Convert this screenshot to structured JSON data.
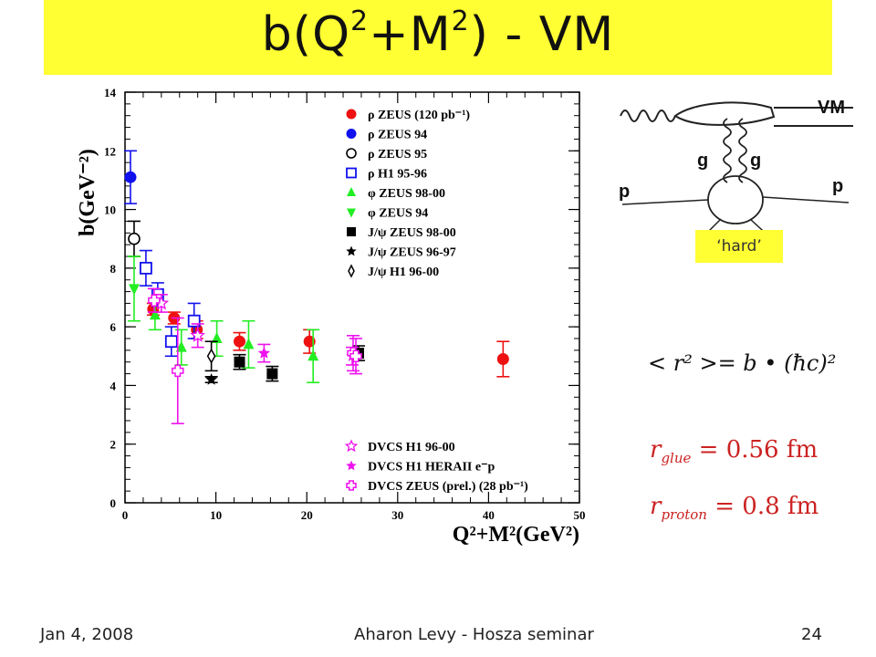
{
  "slide": {
    "title_main": "b(Q",
    "title_sup1": "2",
    "title_mid": "+M",
    "title_sup2": "2",
    "title_end": ") - VM",
    "footer_date": "Jan 4, 2008",
    "footer_center": "Aharon Levy - Hosza seminar",
    "footer_page": "24"
  },
  "diagram": {
    "label_vm": "VM",
    "label_g_left": "g",
    "label_g_right": "g",
    "label_p_left": "p",
    "label_p_right": "p",
    "hard_label": "‘hard’"
  },
  "formulas": {
    "radius_relation": "< r² >= b • (ħc)²",
    "r_glue": "r",
    "r_glue_sub": "glue",
    "r_glue_value": " = 0.56 fm",
    "r_proton": "r",
    "r_proton_sub": "proton",
    "r_proton_value": " = 0.8 fm",
    "color_red": "#cc2222"
  },
  "chart_data": {
    "type": "scatter",
    "xlabel": "Q²+M²(GeV²)",
    "ylabel": "b(GeV⁻²)",
    "xlim": [
      0,
      50
    ],
    "ylim": [
      0,
      14
    ],
    "xticks": [
      0,
      10,
      20,
      30,
      40,
      50
    ],
    "yticks": [
      0,
      2,
      4,
      6,
      8,
      10,
      12,
      14
    ],
    "legend_top": [
      {
        "label": "ρ ZEUS (120 pb⁻¹)",
        "marker": "filled-circle",
        "color": "#ee1111"
      },
      {
        "label": "ρ ZEUS 94",
        "marker": "filled-circle",
        "color": "#1111ee"
      },
      {
        "label": "ρ ZEUS 95",
        "marker": "open-circle",
        "color": "#000000"
      },
      {
        "label": "ρ H1 95-96",
        "marker": "open-square",
        "color": "#1111ee"
      },
      {
        "label": "φ ZEUS 98-00",
        "marker": "triangle-up",
        "color": "#22ee22"
      },
      {
        "label": "φ ZEUS 94",
        "marker": "triangle-down",
        "color": "#22ee22"
      },
      {
        "label": "J/ψ ZEUS 98-00",
        "marker": "filled-square",
        "color": "#000000"
      },
      {
        "label": "J/ψ ZEUS 96-97",
        "marker": "star",
        "color": "#000000"
      },
      {
        "label": "J/ψ H1 96-00",
        "marker": "open-diamond",
        "color": "#000000"
      }
    ],
    "legend_bottom": [
      {
        "label": "DVCS H1 96-00",
        "marker": "open-star",
        "color": "#ee11ee"
      },
      {
        "label": "DVCS H1 HERAII e⁻p",
        "marker": "star",
        "color": "#ee11ee"
      },
      {
        "label": "DVCS ZEUS (prel.) (28 pb⁻¹)",
        "marker": "open-cross",
        "color": "#ee11ee"
      }
    ],
    "series": [
      {
        "name": "ρ ZEUS (120 pb⁻¹)",
        "marker": "filled-circle",
        "color": "#ee1111",
        "points": [
          [
            3.1,
            6.6,
            0.2
          ],
          [
            5.4,
            6.3,
            0.2
          ],
          [
            7.9,
            5.9,
            0.3
          ],
          [
            12.6,
            5.5,
            0.3
          ],
          [
            20.3,
            5.5,
            0.4
          ],
          [
            41.6,
            4.9,
            0.6
          ]
        ]
      },
      {
        "name": "ρ ZEUS 94",
        "marker": "filled-circle",
        "color": "#1111ee",
        "points": [
          [
            0.6,
            11.1,
            0.9
          ]
        ]
      },
      {
        "name": "ρ ZEUS 95",
        "marker": "open-circle",
        "color": "#000000",
        "points": [
          [
            1.0,
            9.0,
            0.6
          ]
        ]
      },
      {
        "name": "ρ H1 95-96",
        "marker": "open-square",
        "color": "#1111ee",
        "points": [
          [
            2.3,
            8.0,
            0.6
          ],
          [
            3.6,
            7.1,
            0.4
          ],
          [
            5.1,
            5.5,
            0.5
          ],
          [
            7.6,
            6.2,
            0.6
          ]
        ]
      },
      {
        "name": "φ ZEUS 98-00",
        "marker": "triangle-up",
        "color": "#22ee22",
        "points": [
          [
            3.3,
            6.4,
            0.5
          ],
          [
            6.2,
            5.3,
            0.6
          ],
          [
            10.1,
            5.6,
            0.6
          ],
          [
            13.6,
            5.4,
            0.8
          ],
          [
            20.7,
            5.0,
            0.9
          ]
        ]
      },
      {
        "name": "φ ZEUS 94",
        "marker": "triangle-down",
        "color": "#22ee22",
        "points": [
          [
            1.0,
            7.3,
            1.1
          ]
        ]
      },
      {
        "name": "J/ψ ZEUS 98-00",
        "marker": "filled-square",
        "color": "#000000",
        "points": [
          [
            12.6,
            4.8,
            0.25
          ],
          [
            16.2,
            4.4,
            0.25
          ],
          [
            25.7,
            5.1,
            0.25
          ]
        ]
      },
      {
        "name": "J/ψ ZEUS 96-97",
        "marker": "star",
        "color": "#000000",
        "points": [
          [
            9.5,
            4.2,
            0.1
          ]
        ]
      },
      {
        "name": "J/ψ H1 96-00",
        "marker": "open-diamond",
        "color": "#000000",
        "points": [
          [
            9.5,
            5.0,
            0.5
          ]
        ]
      },
      {
        "name": "DVCS H1 96-00",
        "marker": "open-star",
        "color": "#ee11ee",
        "points": [
          [
            4.0,
            6.8,
            0.3
          ],
          [
            8.0,
            5.7,
            0.4
          ]
        ]
      },
      {
        "name": "DVCS H1 HERAII e⁻p",
        "marker": "star",
        "color": "#ee11ee",
        "points": [
          [
            15.3,
            5.1,
            0.3
          ],
          [
            25.0,
            5.0,
            0.3
          ]
        ]
      },
      {
        "name": "DVCS ZEUS (prel.) (28 pb⁻¹)",
        "marker": "open-cross",
        "color": "#ee11ee",
        "points": [
          [
            3.2,
            6.9,
            0.4
          ],
          [
            5.8,
            4.5,
            1.8
          ],
          [
            25.1,
            5.1,
            0.6
          ],
          [
            25.4,
            5.0,
            0.6
          ]
        ]
      }
    ]
  }
}
